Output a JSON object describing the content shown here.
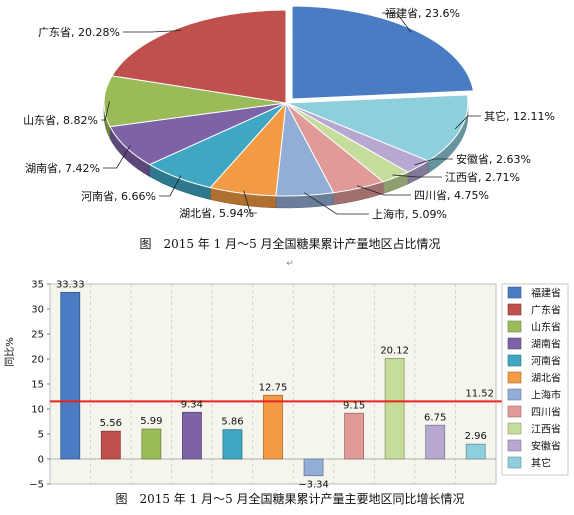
{
  "chart_data": [
    {
      "type": "pie",
      "caption": "图　2015 年 1 月～5 月全国糖果累计产量地区占比情况",
      "slices": [
        {
          "label": "福建省, 23.6%",
          "name": "福建省",
          "value": 23.6,
          "color": "#4a7cc4"
        },
        {
          "label": "其它, 12.11%",
          "name": "其它",
          "value": 12.11,
          "color": "#8ecfdc"
        },
        {
          "label": "安徽省, 2.63%",
          "name": "安徽省",
          "value": 2.63,
          "color": "#b6a8d0"
        },
        {
          "label": "江西省, 2.71%",
          "name": "江西省",
          "value": 2.71,
          "color": "#c5dc9a"
        },
        {
          "label": "四川省, 4.75%",
          "name": "四川省",
          "value": 4.75,
          "color": "#e09a98"
        },
        {
          "label": "上海市, 5.09%",
          "name": "上海市",
          "value": 5.09,
          "color": "#93aed6"
        },
        {
          "label": "湖北省, 5.94%",
          "name": "湖北省",
          "value": 5.94,
          "color": "#f29a44"
        },
        {
          "label": "河南省, 6.66%",
          "name": "河南省",
          "value": 6.66,
          "color": "#3fa7c2"
        },
        {
          "label": "湖南省, 7.42%",
          "name": "湖南省",
          "value": 7.42,
          "color": "#7e62a8"
        },
        {
          "label": "山东省, 8.82%",
          "name": "山东省",
          "value": 8.82,
          "color": "#9bbb59"
        },
        {
          "label": "广东省, 20.28%",
          "name": "广东省",
          "value": 20.28,
          "color": "#c0504d"
        }
      ]
    },
    {
      "type": "bar",
      "caption": "图　2015 年 1 月～5 月全国糖果累计产量主要地区同比增长情况",
      "ylabel": "同比%",
      "ylim": [
        -5,
        35
      ],
      "yticks": [
        "35",
        "30",
        "25",
        "20",
        "15",
        "10",
        "5",
        "0",
        "−5"
      ],
      "reference_line": {
        "value": 11.52,
        "label": "11.52",
        "color": "#e8241c"
      },
      "grid": true,
      "legend_position": "right",
      "categories": [
        "福建省",
        "广东省",
        "山东省",
        "湖南省",
        "河南省",
        "湖北省",
        "上海市",
        "四川省",
        "江西省",
        "安徽省",
        "其它"
      ],
      "values": [
        33.33,
        5.56,
        5.99,
        9.34,
        5.86,
        12.75,
        -3.34,
        9.15,
        20.12,
        6.75,
        2.96
      ],
      "value_labels": [
        "33.33",
        "5.56",
        "5.99",
        "9.34",
        "5.86",
        "12.75",
        "−3.34",
        "9.15",
        "20.12",
        "6.75",
        "2.96"
      ],
      "colors": [
        "#4a7cc4",
        "#c0504d",
        "#9bbb59",
        "#7e62a8",
        "#3fa7c2",
        "#f29a44",
        "#93aed6",
        "#e09a98",
        "#c5dc9a",
        "#b6a8d0",
        "#8ecfdc"
      ]
    }
  ]
}
